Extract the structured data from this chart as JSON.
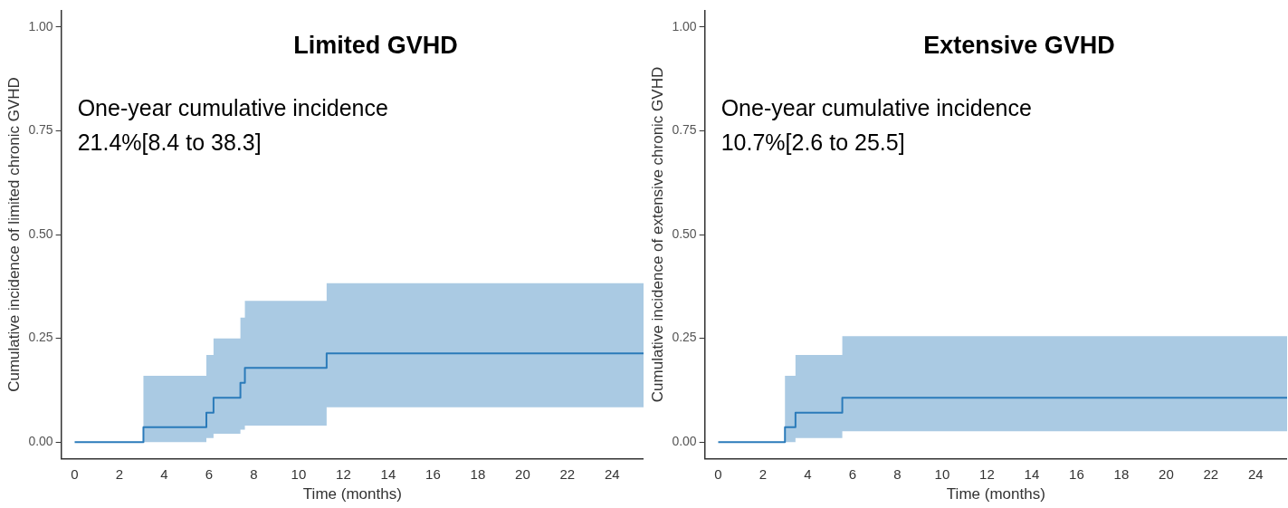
{
  "chart_data": [
    {
      "type": "step",
      "title": "Limited GVHD",
      "xlabel": "Time (months)",
      "ylabel": "Cumulative incidence of limited chronic GVHD",
      "annotations": [
        "One-year cumulative incidence",
        "21.4%[8.4 to 38.3]"
      ],
      "x": [
        0,
        3.07,
        5.88,
        6.2,
        7.4,
        7.6,
        11.25,
        25.4
      ],
      "series": [
        {
          "color": "#2b7bba",
          "values": [
            0,
            0.036,
            0.071,
            0.107,
            0.143,
            0.179,
            0.214,
            0.214
          ],
          "lower": [
            0,
            0,
            0.01,
            0.02,
            0.03,
            0.04,
            0.084,
            0.084
          ],
          "upper": [
            0,
            0.16,
            0.21,
            0.25,
            0.3,
            0.34,
            0.383,
            0.383
          ]
        }
      ],
      "xlim": [
        -0.6,
        25.4
      ],
      "xticks": [
        0,
        2,
        4,
        6,
        8,
        10,
        12,
        14,
        16,
        18,
        20,
        22,
        24
      ],
      "ylim": [
        -0.04,
        1.04
      ],
      "yticks": [
        {
          "value": 0,
          "label": "0.00"
        },
        {
          "value": 0.25,
          "label": "0.25"
        },
        {
          "value": 0.5,
          "label": "0.50"
        },
        {
          "value": 0.75,
          "label": "0.75"
        },
        {
          "value": 1,
          "label": "1.00"
        }
      ],
      "grid": false,
      "legend": false
    },
    {
      "type": "step",
      "title": "Extensive GVHD",
      "xlabel": "Time (months)",
      "ylabel": "Cumulative incidence of extensive chronic GVHD",
      "annotations": [
        "One-year cumulative incidence",
        "10.7%[2.6 to 25.5]"
      ],
      "x": [
        0,
        2.98,
        3.45,
        5.54,
        25.4
      ],
      "series": [
        {
          "color": "#2b7bba",
          "values": [
            0,
            0.036,
            0.071,
            0.107,
            0.107
          ],
          "lower": [
            0,
            0,
            0.01,
            0.026,
            0.026
          ],
          "upper": [
            0,
            0.16,
            0.21,
            0.255,
            0.255
          ]
        }
      ],
      "xlim": [
        -0.6,
        25.4
      ],
      "xticks": [
        0,
        2,
        4,
        6,
        8,
        10,
        12,
        14,
        16,
        18,
        20,
        22,
        24
      ],
      "ylim": [
        -0.04,
        1.04
      ],
      "yticks": [
        {
          "value": 0,
          "label": "0.00"
        },
        {
          "value": 0.25,
          "label": "0.25"
        },
        {
          "value": 0.5,
          "label": "0.50"
        },
        {
          "value": 0.75,
          "label": "0.75"
        },
        {
          "value": 1,
          "label": "1.00"
        }
      ],
      "grid": false,
      "legend": false
    }
  ]
}
